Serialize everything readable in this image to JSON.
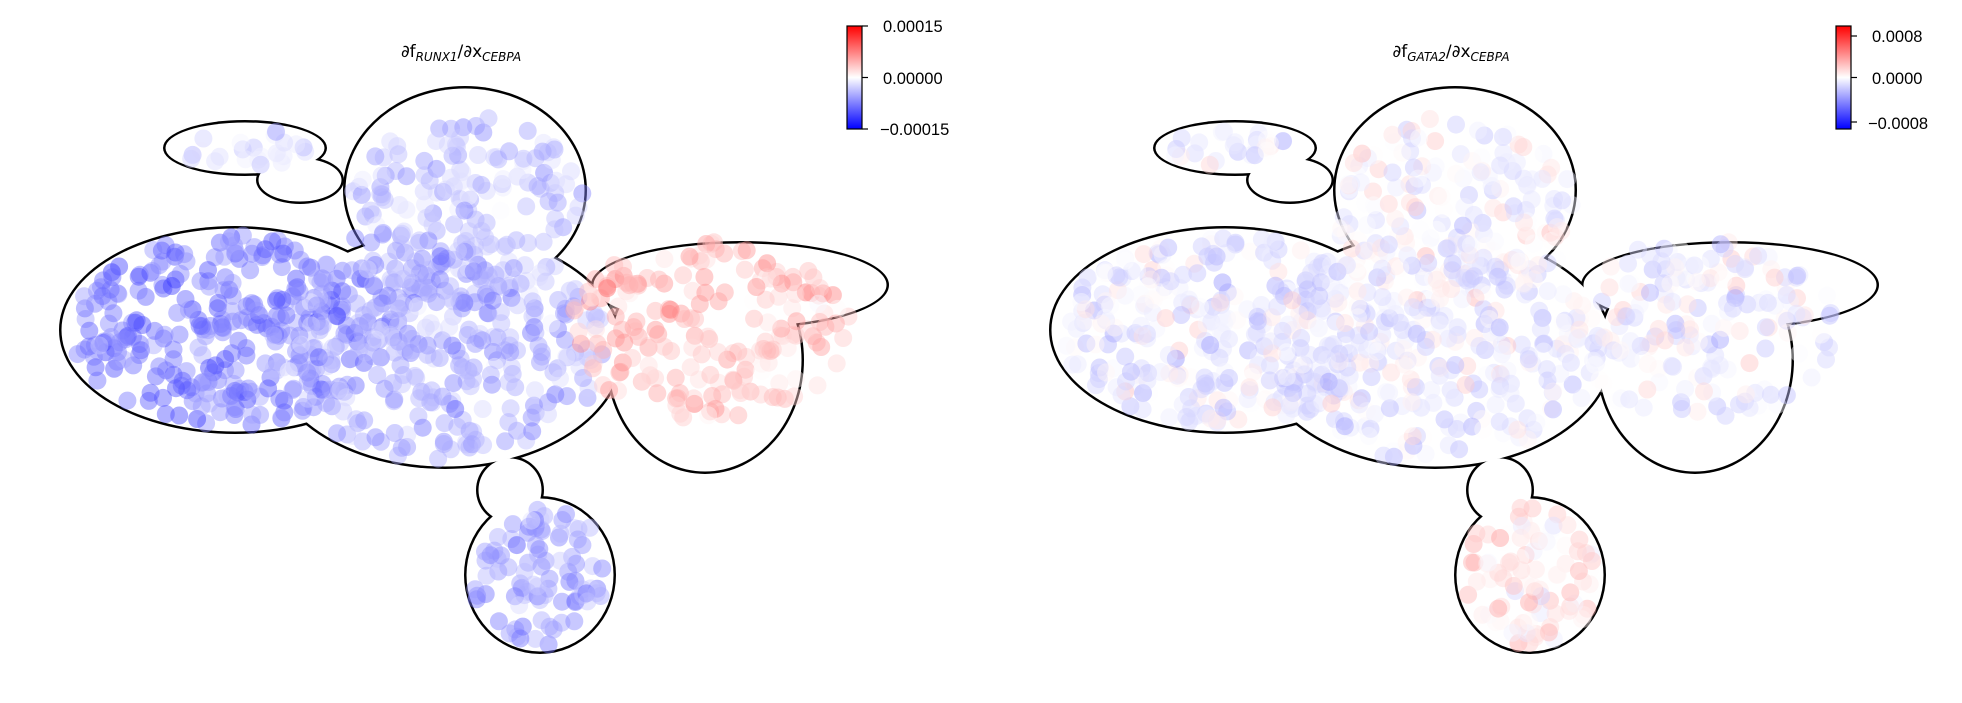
{
  "chart_data": [
    {
      "type": "scatter",
      "title": {
        "partial1": "∂f",
        "target": "RUNX1",
        "slash": "/∂x",
        "source": "CEBPA"
      },
      "colormap": "bwr",
      "colorbar": {
        "vmin": -0.00015,
        "vmax": 0.00015,
        "ticks": [
          0.00015,
          0.0,
          -0.00015
        ],
        "tick_labels": [
          "0.00015",
          "0.00000",
          "−0.00015"
        ]
      },
      "legend": "colorbar top-right",
      "grid": false,
      "axes_visible": false,
      "regions": [
        {
          "name": "upper-left arm",
          "mean_value": -3e-05
        },
        {
          "name": "left body",
          "mean_value": -8e-05
        },
        {
          "name": "top lobe",
          "mean_value": -4e-05
        },
        {
          "name": "center body",
          "mean_value": -5e-05
        },
        {
          "name": "right arm",
          "mean_value": 4e-05
        },
        {
          "name": "bottom lobe",
          "mean_value": -6e-05
        }
      ]
    },
    {
      "type": "scatter",
      "title": {
        "partial1": "∂f",
        "target": "GATA2",
        "slash": "/∂x",
        "source": "CEBPA"
      },
      "colormap": "bwr",
      "colorbar": {
        "vmin": -0.0008,
        "vmax": 0.0008,
        "ticks": [
          0.0008,
          0.0,
          -0.0008
        ],
        "tick_labels": [
          "0.0008",
          "0.0000",
          "−0.0008"
        ]
      },
      "legend": "colorbar top-right",
      "grid": false,
      "axes_visible": false,
      "regions": [
        {
          "name": "upper-left arm",
          "mean_value": -4e-05
        },
        {
          "name": "left body",
          "mean_value": -7e-05
        },
        {
          "name": "top lobe",
          "mean_value": -2e-05
        },
        {
          "name": "center body",
          "mean_value": -8e-05
        },
        {
          "name": "right arm",
          "mean_value": -5e-05
        },
        {
          "name": "bottom lobe",
          "mean_value": 9e-05
        }
      ]
    }
  ]
}
